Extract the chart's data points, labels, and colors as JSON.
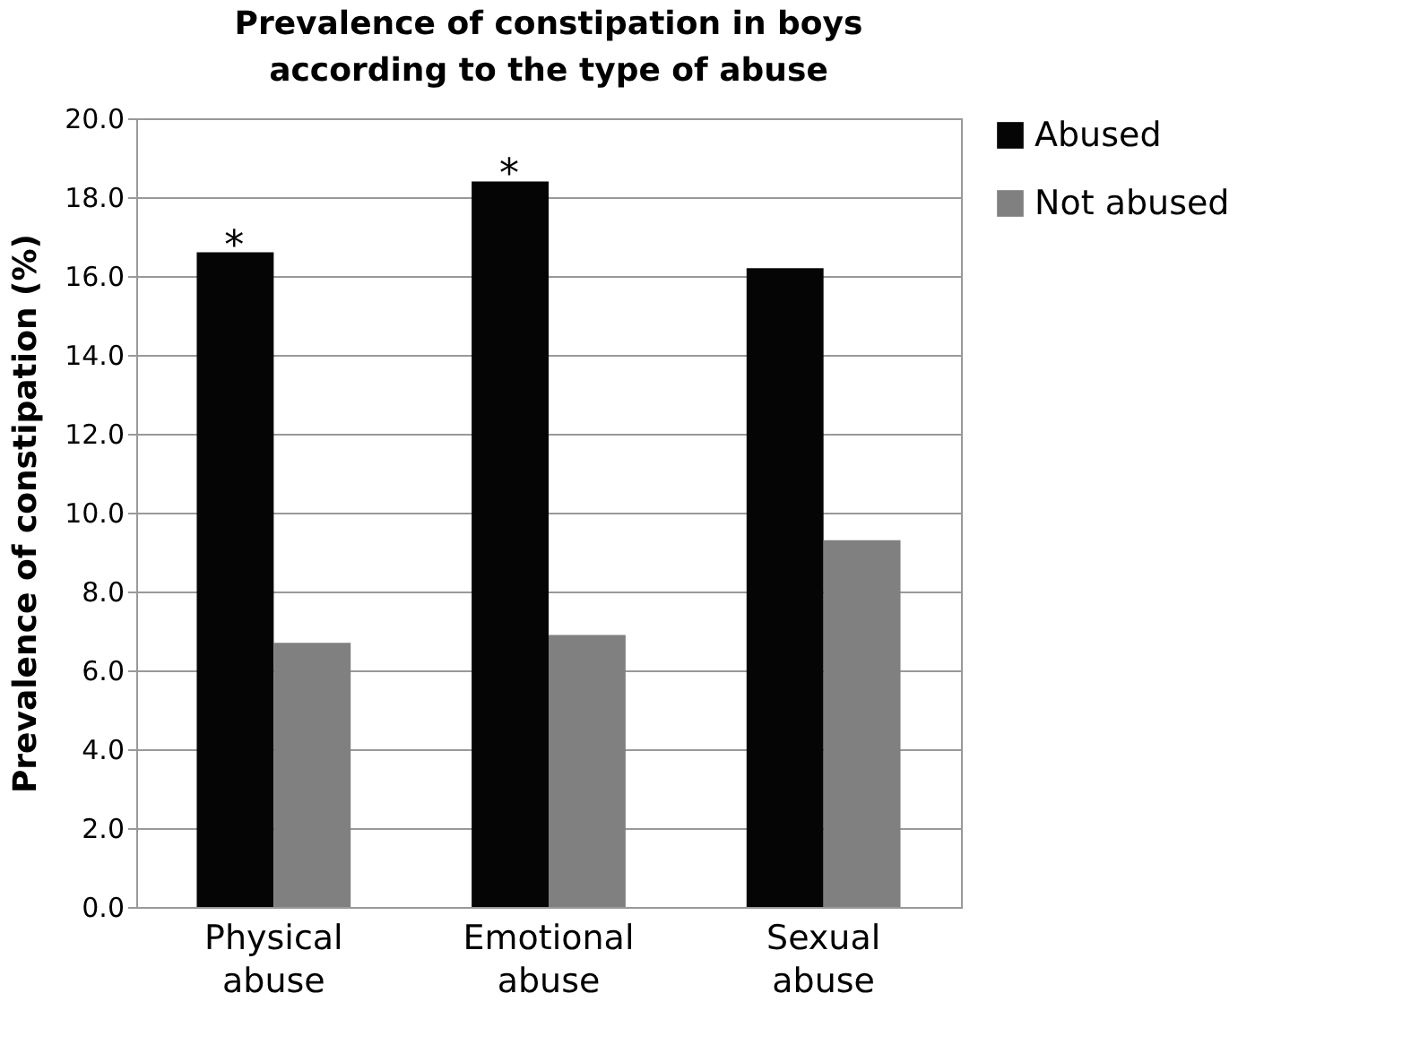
{
  "chart_data": {
    "type": "bar",
    "title": "Prevalence of constipation in boys according to the type of abuse",
    "ylabel": "Prevalence of constipation (%)",
    "categories": [
      "Physical abuse",
      "Emotional abuse",
      "Sexual abuse"
    ],
    "series": [
      {
        "name": "Abused",
        "color": "#050505",
        "values": [
          16.6,
          18.4,
          16.2
        ]
      },
      {
        "name": "Not abused",
        "color": "#808080",
        "values": [
          6.7,
          6.9,
          9.3
        ]
      }
    ],
    "ylim": [
      0,
      20
    ],
    "yticks": [
      {
        "value": 0,
        "label": "0.0"
      },
      {
        "value": 2,
        "label": "2.0"
      },
      {
        "value": 4,
        "label": "4.0"
      },
      {
        "value": 6,
        "label": "6.0"
      },
      {
        "value": 8,
        "label": "8.0"
      },
      {
        "value": 10,
        "label": "10.0"
      },
      {
        "value": 12,
        "label": "12.0"
      },
      {
        "value": 14,
        "label": "14.0"
      },
      {
        "value": 16,
        "label": "16.0"
      },
      {
        "value": 18,
        "label": "18.0"
      },
      {
        "value": 20,
        "label": "20.0"
      }
    ],
    "annotations": [
      {
        "text": "*",
        "x": "Physical abuse",
        "y": 16.6
      },
      {
        "text": "*",
        "x": "Emotional abuse",
        "y": 18.4
      }
    ],
    "grid": "y",
    "legend": "right"
  }
}
